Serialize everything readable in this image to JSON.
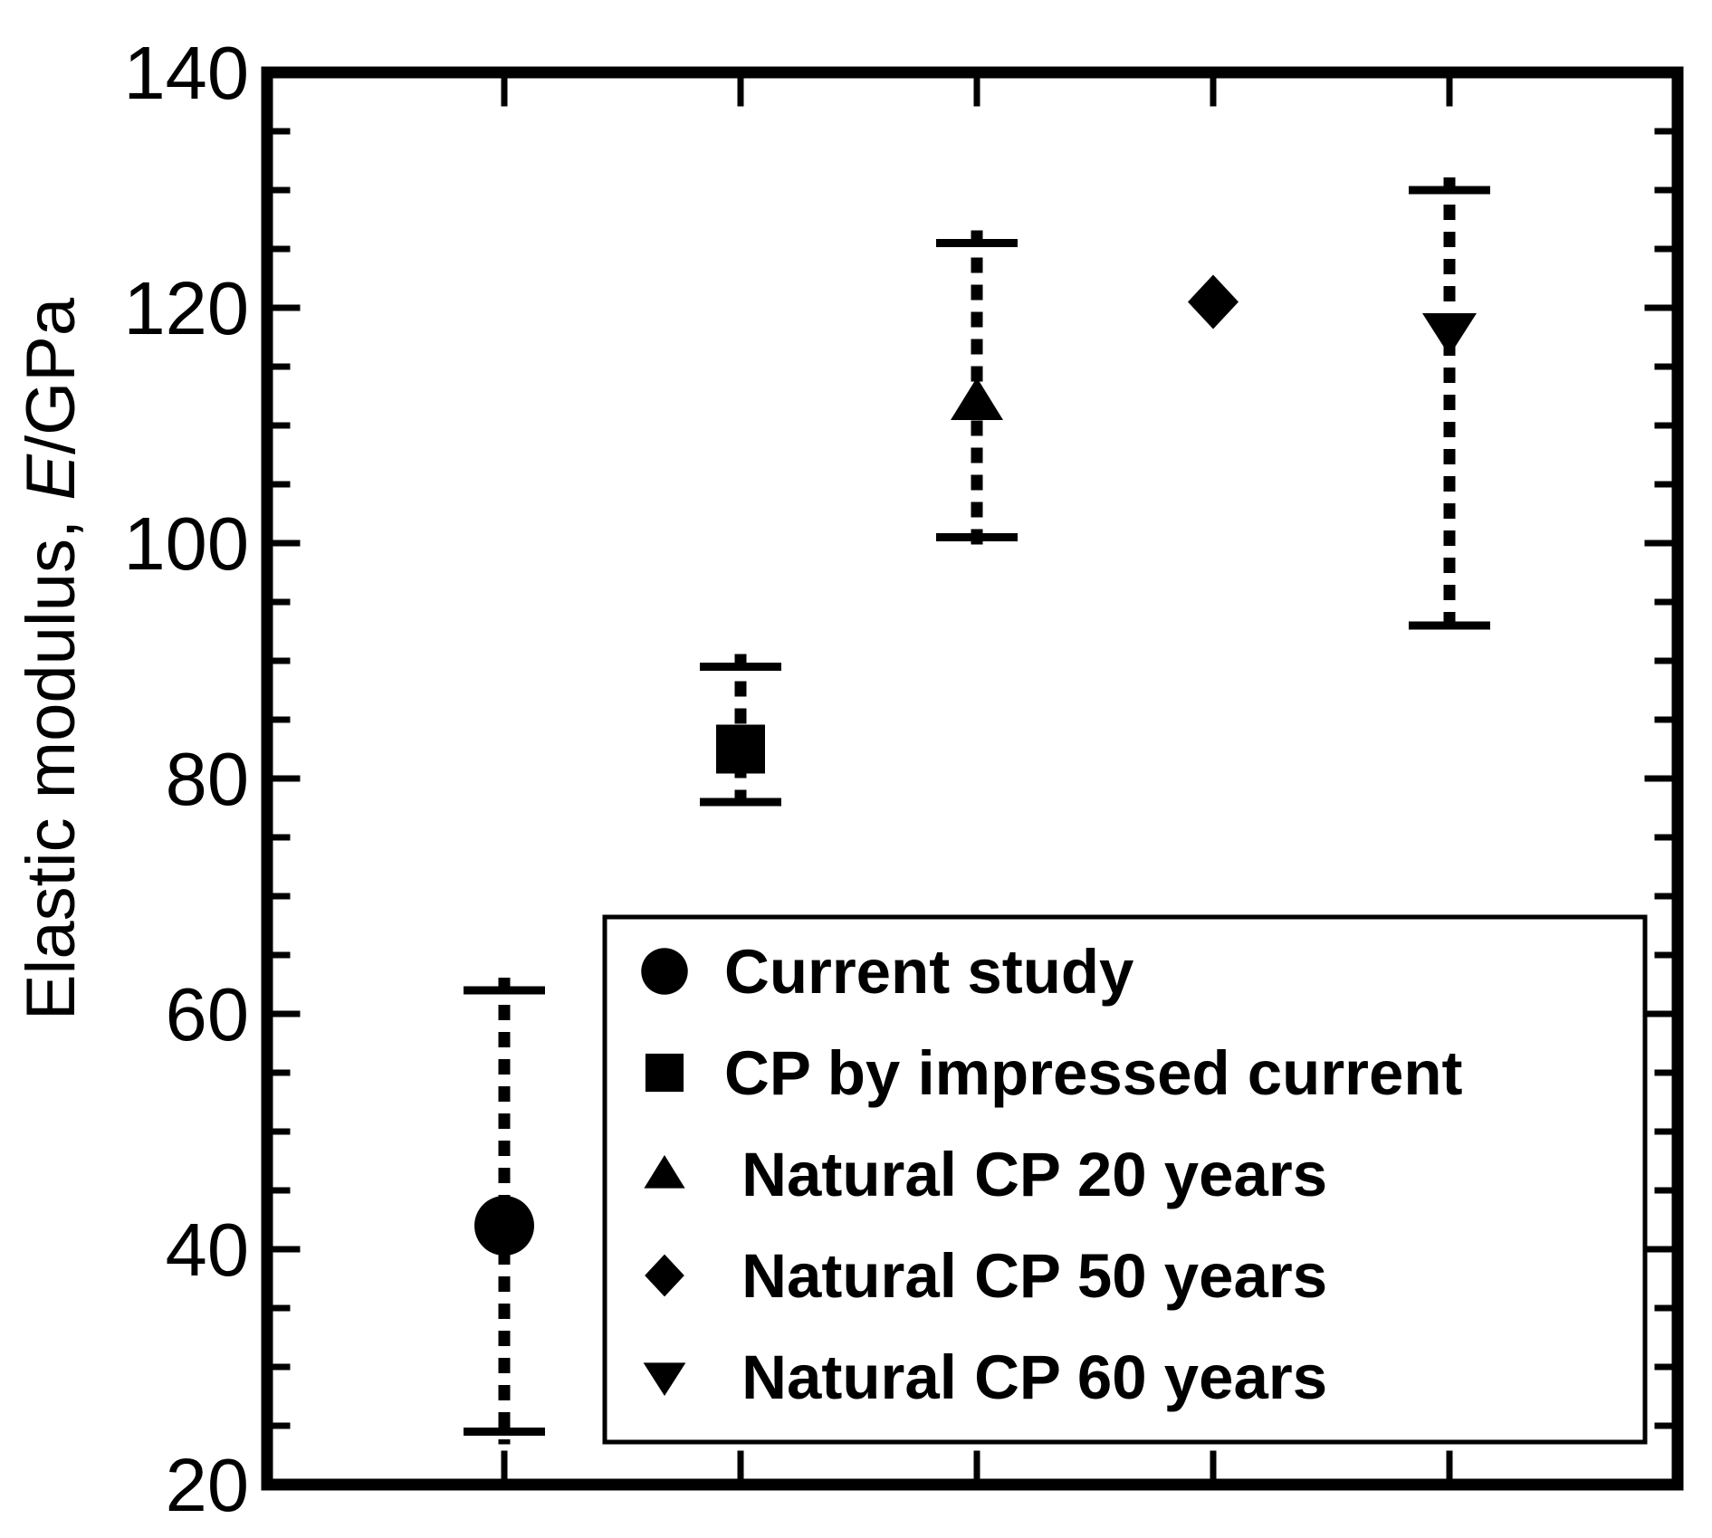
{
  "figure": {
    "background_color": "#ffffff",
    "foreground_color": "#000000"
  },
  "chart_data": {
    "type": "scatter",
    "title": "",
    "xlabel": "",
    "ylabel": {
      "full": "Elastic modulus, E/GPa",
      "prefix": "Elastic modulus, ",
      "italic_var": "E",
      "suffix": "/GPa"
    },
    "ylim": [
      20,
      140
    ],
    "y_major_ticks": [
      20,
      40,
      60,
      80,
      100,
      120,
      140
    ],
    "y_minor_tick_step": 5,
    "x_tick_slots": 5,
    "x_tick_labels": [],
    "grid": false,
    "tick_style": "inward, mirrored on all four frame sides",
    "error_bar_style": "vertical dashed line with solid horizontal caps",
    "marker_color": "#000000",
    "background_color": "#ffffff",
    "series": [
      {
        "label": "Current study",
        "marker": "circle",
        "x_slot": 1,
        "y": 42,
        "y_low": 24.5,
        "y_high": 62
      },
      {
        "label": "CP by impressed current",
        "marker": "square",
        "x_slot": 2,
        "y": 82.5,
        "y_low": 78,
        "y_high": 89.5
      },
      {
        "label": " Natural CP 20 years",
        "marker": "triangle-up",
        "x_slot": 3,
        "y": 112,
        "y_low": 100.5,
        "y_high": 125.5
      },
      {
        "label": " Natural CP 50 years",
        "marker": "diamond",
        "x_slot": 4,
        "y": 120.5,
        "y_low": null,
        "y_high": null
      },
      {
        "label": " Natural CP 60 years",
        "marker": "triangle-down",
        "x_slot": 5,
        "y": 118,
        "y_low": 93,
        "y_high": 130
      }
    ],
    "legend": {
      "position": "inside bottom-right",
      "border": true,
      "entries": [
        "Current study",
        "CP by impressed current",
        " Natural CP 20 years",
        " Natural CP 50 years",
        " Natural CP 60 years"
      ]
    }
  }
}
